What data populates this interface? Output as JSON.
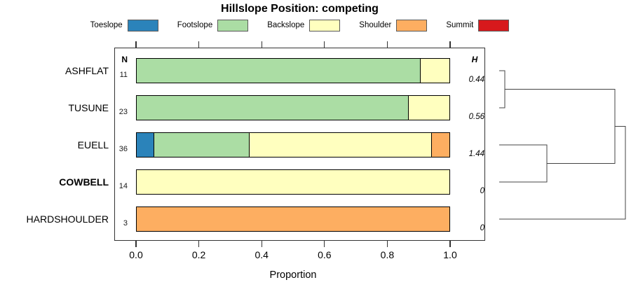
{
  "title": "Hillslope Position: competing",
  "legend": {
    "items": [
      {
        "label": "Toeslope",
        "color": "#2B83BA"
      },
      {
        "label": "Footslope",
        "color": "#ABDDA4"
      },
      {
        "label": "Backslope",
        "color": "#FFFFBF"
      },
      {
        "label": "Shoulder",
        "color": "#FDAE61"
      },
      {
        "label": "Summit",
        "color": "#D7191C"
      }
    ]
  },
  "chart_data": {
    "type": "bar",
    "variant": "horizontal-stacked-proportion",
    "title": "Hillslope Position: competing",
    "xlabel": "Proportion",
    "xlim": [
      0,
      1
    ],
    "grid": false,
    "legend_position": "top",
    "xtick_values": [
      0,
      0.2,
      0.4,
      0.6,
      0.8,
      1.0
    ],
    "xtick_labels": [
      "0.0",
      "0.2",
      "0.4",
      "0.6",
      "0.8",
      "1.0"
    ],
    "left_header": "N",
    "right_header": "H",
    "series_colors": {
      "Toeslope": "#2B83BA",
      "Footslope": "#ABDDA4",
      "Backslope": "#FFFFBF",
      "Shoulder": "#FDAE61",
      "Summit": "#D7191C"
    },
    "rows": [
      {
        "category": "ASHFLAT",
        "n": 11,
        "h": "0.44",
        "bold": false,
        "segments": [
          {
            "name": "Footslope",
            "value": 0.909
          },
          {
            "name": "Backslope",
            "value": 0.091
          }
        ]
      },
      {
        "category": "TUSUNE",
        "n": 23,
        "h": "0.56",
        "bold": false,
        "segments": [
          {
            "name": "Footslope",
            "value": 0.87
          },
          {
            "name": "Backslope",
            "value": 0.13
          }
        ]
      },
      {
        "category": "EUELL",
        "n": 36,
        "h": "1.44",
        "bold": false,
        "segments": [
          {
            "name": "Toeslope",
            "value": 0.056
          },
          {
            "name": "Footslope",
            "value": 0.306
          },
          {
            "name": "Backslope",
            "value": 0.583
          },
          {
            "name": "Shoulder",
            "value": 0.055
          }
        ]
      },
      {
        "category": "COWBELL",
        "n": 14,
        "h": "0",
        "bold": true,
        "segments": [
          {
            "name": "Backslope",
            "value": 1.0
          }
        ]
      },
      {
        "category": "HARDSHOULDER",
        "n": 3,
        "h": "0",
        "bold": false,
        "segments": [
          {
            "name": "Shoulder",
            "value": 1.0
          }
        ]
      }
    ],
    "dendrogram": {
      "leaf_order": [
        "ASHFLAT",
        "TUSUNE",
        "EUELL",
        "COWBELL",
        "HARDSHOULDER"
      ],
      "merges": [
        {
          "children": [
            "leaf0",
            "leaf1"
          ],
          "height": 0.044
        },
        {
          "children": [
            "leaf2",
            "leaf3"
          ],
          "height": 0.378
        },
        {
          "children": [
            "m0",
            "m1"
          ],
          "height": 0.917
        },
        {
          "children": [
            "m2",
            "leaf4"
          ],
          "height": 1.0
        }
      ]
    }
  }
}
